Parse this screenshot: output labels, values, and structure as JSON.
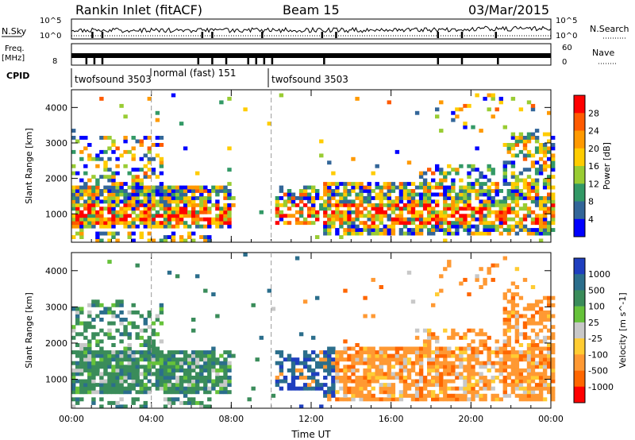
{
  "header": {
    "station": "Rankin Inlet (fitACF)",
    "beam": "Beam 15",
    "date": "03/Mar/2015"
  },
  "status_panels": {
    "nsky_label": "N.Sky",
    "nsky_ticks": [
      "10^5",
      "10^0"
    ],
    "nsearch_label": "N.Search",
    "nsearch_ticks": [
      "10^5",
      "10^0"
    ],
    "freq_label": "Freq.",
    "freq_unit": "[MHz]",
    "freq_ticks": [
      "8"
    ],
    "nave_label": "Nave",
    "nave_ticks": [
      "60",
      "0"
    ],
    "cpid_label": "CPID",
    "modes": [
      {
        "name": "twofsound",
        "id": "3503"
      },
      {
        "name": "normal (fast)",
        "id": "151"
      },
      {
        "name": "twofsound",
        "id": "3503"
      }
    ]
  },
  "chart_data": [
    {
      "type": "heatmap",
      "title": "",
      "ylabel": "Slant Range [km]",
      "ylim": [
        200,
        4500
      ],
      "y_ticks": [
        "1000",
        "2000",
        "3000",
        "4000"
      ],
      "x_ticks": [
        "00:00",
        "04:00",
        "08:00",
        "12:00",
        "16:00",
        "20:00",
        "00:00"
      ],
      "colorbar": {
        "label": "Power [dB]",
        "range": [
          0,
          30
        ],
        "tick_labels": [
          "28",
          "24",
          "20",
          "16",
          "12",
          "8",
          "4"
        ],
        "colors": [
          "#ff0000",
          "#ff5a00",
          "#ff9900",
          "#ffcc00",
          "#99cc33",
          "#339966",
          "#336699",
          "#0000ff"
        ]
      }
    },
    {
      "type": "heatmap",
      "title": "",
      "ylabel": "Slant Range [km]",
      "xlabel": "Time UT",
      "ylim": [
        200,
        4500
      ],
      "y_ticks": [
        "1000",
        "2000",
        "3000",
        "4000"
      ],
      "x_ticks": [
        "00:00",
        "04:00",
        "08:00",
        "12:00",
        "16:00",
        "20:00",
        "00:00"
      ],
      "colorbar": {
        "label": "Velocity [m s^-1]",
        "tick_labels": [
          "1000",
          "500",
          "100",
          "25",
          "-25",
          "-100",
          "-500",
          "-1000"
        ],
        "colors": [
          "#1f3fbf",
          "#2b6e8c",
          "#3a8c5a",
          "#66c23a",
          "#c8c8c8",
          "#ffcc33",
          "#ff9933",
          "#ff6600",
          "#ff0000"
        ]
      }
    }
  ]
}
